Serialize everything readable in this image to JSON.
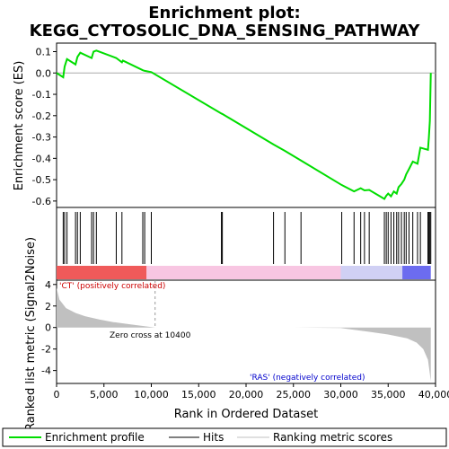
{
  "chart_data": {
    "type": "line",
    "title_line1": "Enrichment plot:",
    "title_line2": "KEGG_CYTOSOLIC_DNA_SENSING_PATHWAY",
    "es_panel": {
      "ylabel": "Enrichment score (ES)",
      "ylim": [
        -0.63,
        0.14
      ],
      "yticks": [
        0.1,
        0.0,
        -0.1,
        -0.2,
        -0.3,
        -0.4,
        -0.5,
        -0.6
      ],
      "ytick_labels": [
        "0.1",
        "0.0",
        "-0.1",
        "-0.2",
        "-0.3",
        "-0.4",
        "-0.5",
        "-0.6"
      ],
      "series_name": "Enrichment profile",
      "color": "#00dd00",
      "x": [
        0,
        700,
        850,
        1100,
        2000,
        2200,
        2500,
        3700,
        3900,
        4200,
        6300,
        6900,
        7000,
        9100,
        9300,
        10000,
        17400,
        17500,
        22900,
        24100,
        25800,
        30100,
        31400,
        32100,
        32500,
        33000,
        34600,
        34800,
        35000,
        35300,
        35600,
        35900,
        36100,
        36400,
        36700,
        36900,
        37200,
        37600,
        38100,
        38400,
        39200,
        39300,
        39400,
        39500
      ],
      "y": [
        0.0,
        -0.02,
        0.03,
        0.065,
        0.04,
        0.075,
        0.095,
        0.07,
        0.1,
        0.105,
        0.07,
        0.05,
        0.058,
        0.013,
        0.01,
        0.004,
        -0.19,
        -0.192,
        -0.335,
        -0.365,
        -0.41,
        -0.525,
        -0.555,
        -0.54,
        -0.55,
        -0.548,
        -0.59,
        -0.575,
        -0.565,
        -0.578,
        -0.555,
        -0.565,
        -0.535,
        -0.52,
        -0.5,
        -0.475,
        -0.45,
        -0.415,
        -0.425,
        -0.35,
        -0.36,
        -0.3,
        -0.225,
        0.0
      ]
    },
    "hits": [
      700,
      850,
      1100,
      2000,
      2200,
      2500,
      3700,
      3900,
      4200,
      6300,
      6900,
      9100,
      9300,
      10000,
      17400,
      17500,
      22900,
      24100,
      25800,
      30100,
      31400,
      32100,
      32500,
      33000,
      34600,
      34800,
      35000,
      35300,
      35600,
      35900,
      36100,
      36400,
      36700,
      36900,
      37200,
      37600,
      38100,
      38400,
      39200,
      39300,
      39400,
      39500
    ],
    "metric_panel": {
      "ylabel": "Ranked list metric (Signal2Noise)",
      "ylim": [
        -5.2,
        4.4
      ],
      "yticks": [
        4,
        2,
        0,
        -2,
        -4
      ],
      "ytick_labels": [
        "4",
        "2",
        "0",
        "-2",
        "-4"
      ],
      "x": [
        0,
        300,
        1000,
        2000,
        3000,
        4500,
        6000,
        8000,
        10400,
        15000,
        20000,
        25000,
        30000,
        33000,
        35000,
        37000,
        38000,
        38700,
        39200,
        39400,
        39500
      ],
      "y": [
        3.7,
        2.6,
        1.8,
        1.35,
        1.05,
        0.75,
        0.5,
        0.27,
        0.0,
        0.0,
        0.0,
        0.0,
        -0.05,
        -0.4,
        -0.65,
        -1.0,
        -1.4,
        -2.0,
        -3.0,
        -4.3,
        -5.0
      ],
      "pos_label": "'CT' (positively correlated)",
      "neg_label": "'RAS' (negatively correlated)",
      "zero_cross_label": "Zero cross at 10400",
      "zero_cross": 10400,
      "fill_color": "#c0c0c0"
    },
    "xaxis": {
      "xlabel": "Rank in Ordered Dataset",
      "xlim": [
        0,
        40000
      ],
      "xticks": [
        0,
        5000,
        10000,
        15000,
        20000,
        25000,
        30000,
        35000,
        40000
      ],
      "xtick_labels": [
        "0",
        "5,000",
        "10,000",
        "15,000",
        "20,000",
        "25,000",
        "30,000",
        "35,000",
        "40,000"
      ]
    },
    "colorbar": {
      "segments": [
        {
          "from": 0,
          "to": 9500,
          "color": "#f05a5a"
        },
        {
          "from": 9500,
          "to": 30000,
          "color": "#f8c6e2"
        },
        {
          "from": 30000,
          "to": 36500,
          "color": "#d0d0f4"
        },
        {
          "from": 36500,
          "to": 39500,
          "color": "#6c6cf0"
        }
      ]
    },
    "legend": {
      "position": "bottom",
      "items": [
        "Enrichment profile",
        "Hits",
        "Ranking metric scores"
      ],
      "colors": [
        "#00dd00",
        "#000000",
        "#c0c0c0"
      ]
    }
  }
}
